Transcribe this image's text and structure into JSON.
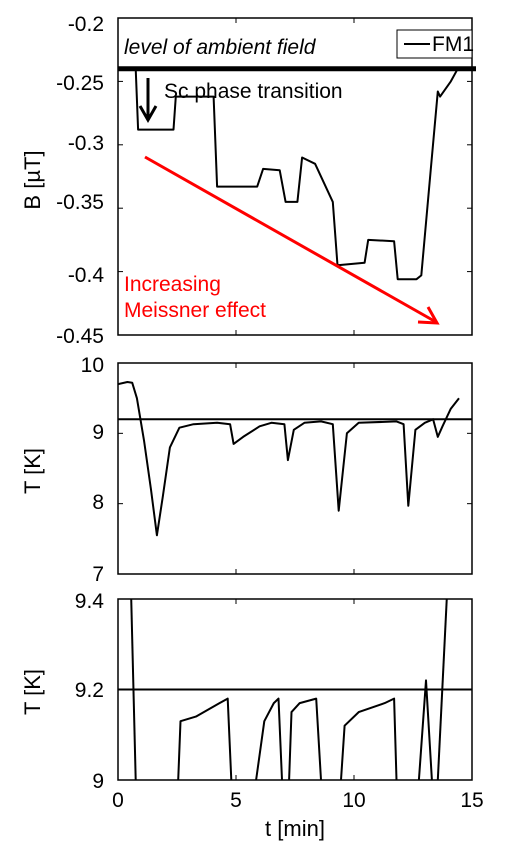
{
  "chart_data": [
    {
      "type": "line",
      "panel": "top",
      "ylabel": "B [µT]",
      "ylim": [
        -0.45,
        -0.2
      ],
      "xlim": [
        0,
        15
      ],
      "yticks": [
        -0.45,
        -0.4,
        -0.35,
        -0.3,
        -0.25,
        -0.2
      ],
      "ytick_labels": [
        "-0.45",
        "-0.4",
        "-0.35",
        "-0.3",
        "-0.25",
        "-0.2"
      ],
      "legend": "FM1",
      "legend_position": "top-right",
      "series": [
        {
          "name": "FM1",
          "color": "#000000",
          "x": [
            0,
            0.75,
            0.85,
            2.35,
            2.45,
            4.05,
            4.2,
            5.9,
            6.15,
            6.85,
            7.1,
            7.6,
            7.8,
            8.35,
            9.1,
            9.3,
            10.45,
            10.6,
            11.7,
            11.85,
            12.65,
            12.85,
            13.25,
            13.55,
            13.65,
            14.1,
            14.4,
            15
          ],
          "y": [
            -0.24,
            -0.24,
            -0.288,
            -0.288,
            -0.262,
            -0.262,
            -0.333,
            -0.333,
            -0.319,
            -0.32,
            -0.345,
            -0.345,
            -0.31,
            -0.315,
            -0.345,
            -0.395,
            -0.393,
            -0.375,
            -0.376,
            -0.406,
            -0.406,
            -0.403,
            -0.32,
            -0.258,
            -0.262,
            -0.25,
            -0.24,
            -0.24
          ]
        }
      ],
      "annotations": {
        "ambient_level": -0.24,
        "ambient_text": "level of ambient field",
        "transition_text": "Sc phase transition",
        "meissner_line1": "Increasing",
        "meissner_line2": "Meissner effect",
        "meissner_color": "#ff0000"
      }
    },
    {
      "type": "line",
      "panel": "middle",
      "ylabel": "T [K]",
      "ylim": [
        7,
        10
      ],
      "xlim": [
        0,
        15
      ],
      "yticks": [
        7,
        8,
        9,
        10
      ],
      "ytick_labels": [
        "7",
        "8",
        "9",
        "10"
      ],
      "reference_line": 9.2,
      "series": [
        {
          "name": "",
          "color": "#000000",
          "x": [
            0,
            0.4,
            0.6,
            0.8,
            1.1,
            1.4,
            1.65,
            1.9,
            2.2,
            2.6,
            3.2,
            4.2,
            4.75,
            4.9,
            5.3,
            6.0,
            6.5,
            7.05,
            7.2,
            7.45,
            7.9,
            8.6,
            9.1,
            9.35,
            9.7,
            10.2,
            11.8,
            12.1,
            12.3,
            12.6,
            13.0,
            13.35,
            13.55,
            13.75,
            14.1,
            14.45
          ],
          "y": [
            9.7,
            9.73,
            9.72,
            9.5,
            8.9,
            8.2,
            7.55,
            8.1,
            8.8,
            9.08,
            9.13,
            9.15,
            9.13,
            8.85,
            8.95,
            9.1,
            9.15,
            9.13,
            8.62,
            9.05,
            9.15,
            9.17,
            9.13,
            7.9,
            9.0,
            9.15,
            9.17,
            9.13,
            7.97,
            9.05,
            9.15,
            9.2,
            8.95,
            9.1,
            9.35,
            9.5
          ]
        }
      ]
    },
    {
      "type": "line",
      "panel": "bottom",
      "ylabel": "T [K]",
      "xlabel": "t [min]",
      "ylim": [
        9,
        9.4
      ],
      "xlim": [
        0,
        15
      ],
      "yticks": [
        9,
        9.2,
        9.4
      ],
      "ytick_labels": [
        "9",
        "9.2",
        "9.4"
      ],
      "xticks": [
        0,
        5,
        10,
        15
      ],
      "xtick_labels": [
        "0",
        "5",
        "10",
        "15"
      ],
      "reference_line": 9.2,
      "series": [
        {
          "name": "",
          "color": "#000000",
          "segments": [
            {
              "x": [
                0.55,
                0.75
              ],
              "y": [
                9.42,
                9.0
              ]
            },
            {
              "x": [
                2.55,
                2.65,
                3.3,
                4.3,
                4.65,
                4.8
              ],
              "y": [
                9.0,
                9.13,
                9.14,
                9.17,
                9.18,
                9.0
              ]
            },
            {
              "x": [
                5.85,
                6.2,
                6.6,
                6.8,
                6.95
              ],
              "y": [
                9.0,
                9.13,
                9.17,
                9.18,
                9.0
              ]
            },
            {
              "x": [
                7.25,
                7.35,
                7.7,
                8.4,
                8.6
              ],
              "y": [
                9.0,
                9.15,
                9.17,
                9.18,
                9.0
              ]
            },
            {
              "x": [
                9.45,
                9.6,
                10.2,
                11.3,
                11.7,
                11.8
              ],
              "y": [
                9.0,
                9.12,
                9.15,
                9.17,
                9.18,
                9.0
              ]
            },
            {
              "x": [
                12.75,
                13.05,
                13.3
              ],
              "y": [
                9.0,
                9.22,
                9.0
              ]
            },
            {
              "x": [
                13.55,
                13.95
              ],
              "y": [
                9.0,
                9.42
              ]
            }
          ]
        }
      ]
    }
  ]
}
